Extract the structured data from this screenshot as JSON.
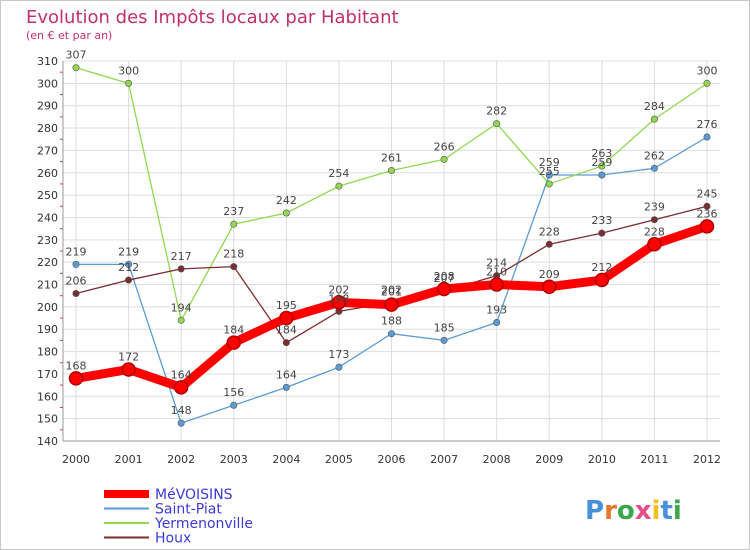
{
  "chart_data": {
    "type": "line",
    "title": "Evolution des Impôts locaux par Habitant",
    "subtitle": "(en € et par an)",
    "x": [
      "2000",
      "2001",
      "2002",
      "2003",
      "2004",
      "2005",
      "2006",
      "2007",
      "2008",
      "2009",
      "2010",
      "2011",
      "2012"
    ],
    "ylim": [
      140,
      310
    ],
    "yticks": [
      140,
      150,
      160,
      170,
      180,
      190,
      200,
      210,
      220,
      230,
      240,
      250,
      260,
      270,
      280,
      290,
      300,
      310
    ],
    "grid": true,
    "legend_position": "bottom-left",
    "series": [
      {
        "name": "MéVOISINS",
        "color": "#ff0000",
        "values": [
          168,
          172,
          164,
          184,
          195,
          202,
          201,
          208,
          210,
          209,
          212,
          228,
          236
        ]
      },
      {
        "name": "Saint-Piat",
        "color": "#5b9bd5",
        "values": [
          219,
          219,
          148,
          156,
          164,
          173,
          188,
          185,
          193,
          259,
          259,
          262,
          276
        ]
      },
      {
        "name": "Yermenonville",
        "color": "#90d850",
        "values": [
          307,
          300,
          194,
          237,
          242,
          254,
          261,
          266,
          282,
          255,
          263,
          284,
          300
        ]
      },
      {
        "name": "Houx",
        "color": "#7a2e2e",
        "values": [
          206,
          212,
          217,
          218,
          184,
          198,
          202,
          207,
          214,
          228,
          233,
          239,
          245
        ]
      }
    ]
  },
  "logo": {
    "text": "Proxiti"
  }
}
